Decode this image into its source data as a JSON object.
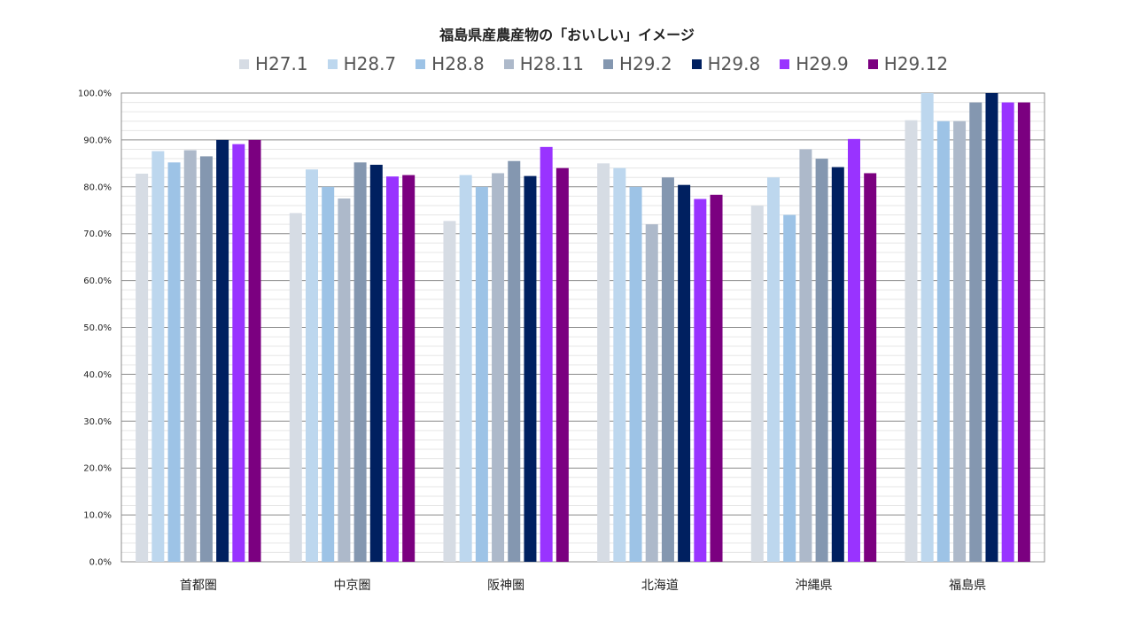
{
  "chart_data": {
    "type": "bar",
    "title": "福島県産農産物の「おいしい」イメージ",
    "categories": [
      "首都圏",
      "中京圏",
      "阪神圏",
      "北海道",
      "沖縄県",
      "福島県"
    ],
    "ylim": [
      0,
      100
    ],
    "y_ticks": [
      "0.0%",
      "10.0%",
      "20.0%",
      "30.0%",
      "40.0%",
      "50.0%",
      "60.0%",
      "70.0%",
      "80.0%",
      "90.0%",
      "100.0%"
    ],
    "grid": true,
    "legend_position": "top",
    "series": [
      {
        "name": "H27.1",
        "color": "#d6dce4",
        "values": [
          82.8,
          74.4,
          72.7,
          85.0,
          76.0,
          94.2
        ]
      },
      {
        "name": "H28.7",
        "color": "#bdd7ee",
        "values": [
          87.6,
          83.7,
          82.5,
          84.0,
          82.0,
          100.0
        ]
      },
      {
        "name": "H28.8",
        "color": "#9dc3e6",
        "values": [
          85.2,
          80.0,
          80.0,
          80.0,
          74.0,
          94.0
        ]
      },
      {
        "name": "H28.11",
        "color": "#adb9ca",
        "values": [
          87.8,
          77.5,
          82.9,
          72.0,
          88.0,
          94.0
        ]
      },
      {
        "name": "H29.2",
        "color": "#8497b0",
        "values": [
          86.5,
          85.2,
          85.5,
          82.0,
          86.0,
          98.0
        ]
      },
      {
        "name": "H29.8",
        "color": "#002060",
        "values": [
          90.0,
          84.7,
          82.3,
          80.4,
          84.2,
          100.0
        ]
      },
      {
        "name": "H29.9",
        "color": "#9933ff",
        "values": [
          89.1,
          82.2,
          88.5,
          77.4,
          90.2,
          98.0
        ]
      },
      {
        "name": "H29.12",
        "color": "#7b0080",
        "values": [
          90.0,
          82.5,
          84.0,
          78.3,
          82.9,
          98.0
        ]
      }
    ]
  }
}
